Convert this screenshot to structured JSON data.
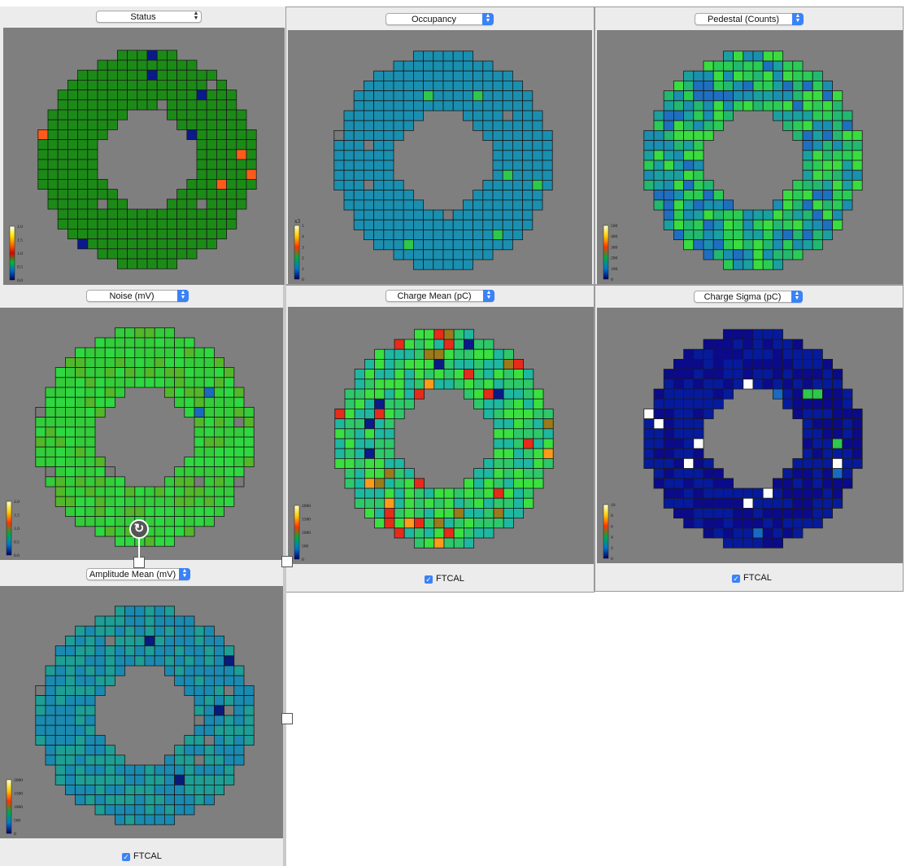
{
  "panels": [
    {
      "id": "status",
      "title": "Status",
      "scale": {
        "ticks": [
          "2.0",
          "1.5",
          "1.0",
          "0.5",
          "0.0"
        ]
      },
      "palette": "status"
    },
    {
      "id": "occupancy",
      "title": "Occupancy",
      "scale": {
        "multiplier": "x3",
        "ticks": [
          "5",
          "4",
          "3",
          "2",
          "1",
          "0"
        ]
      },
      "palette": "occupancy"
    },
    {
      "id": "pedestal",
      "title": "Pedestal (Counts)",
      "scale": {
        "ticks": [
          "500",
          "400",
          "300",
          "200",
          "100",
          "0"
        ]
      },
      "palette": "pedestal"
    },
    {
      "id": "noise",
      "title": "Noise (mV)",
      "scale": {
        "ticks": [
          "2.0",
          "1.5",
          "1.0",
          "0.5",
          "0.0"
        ]
      },
      "palette": "noise"
    },
    {
      "id": "charge_mean",
      "title": "Charge Mean (pC)",
      "scale": {
        "ticks": [
          "2000",
          "1500",
          "1000",
          "500",
          "0"
        ]
      },
      "palette": "charge_mean"
    },
    {
      "id": "charge_sigma",
      "title": "Charge Sigma (pC)",
      "scale": {
        "ticks": [
          "10",
          "8",
          "6",
          "4",
          "2",
          "0"
        ]
      },
      "palette": "charge_sigma"
    },
    {
      "id": "amplitude_mean",
      "title": "Amplitude Mean (mV)",
      "scale": {
        "ticks": [
          "2000",
          "1500",
          "1000",
          "500",
          "0"
        ]
      },
      "palette": "amplitude_mean"
    }
  ],
  "checkboxes": {
    "charge_mean": "FTCAL",
    "charge_sigma": "FTCAL",
    "amplitude_mean": "FTCAL"
  },
  "colors": {
    "plot_background": "#7f7f7f",
    "status_good": "#1c8a17",
    "occupancy_base": "#1a8fb0",
    "noise_base": "#33cc3a",
    "charge_sigma_base": "#061a9c",
    "amplitude_base": "#1e9e95",
    "dead": "#7a7a7a"
  },
  "icons": {
    "refresh": "refresh-icon",
    "checkbox": "checkmark-icon",
    "select": "up-down-arrows-icon"
  }
}
